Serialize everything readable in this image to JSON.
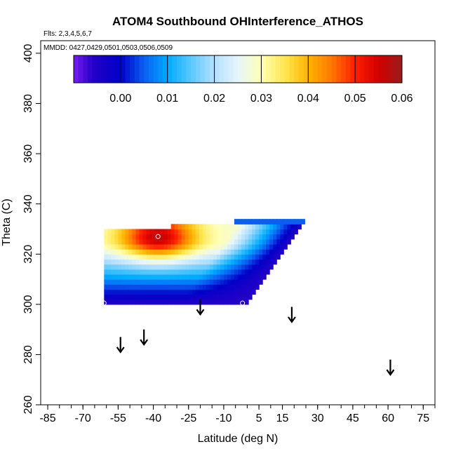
{
  "chart_data": {
    "type": "heatmap",
    "title": "ATOM4 Southbound OHInterference_ATHOS",
    "flights_label": "Flts: 2,3,4,5,6,7",
    "mmdd_label": "MMDD: 0427,0429,0501,0503,0506,0509",
    "xlabel": "Latitude (deg N)",
    "ylabel": "Theta (C)",
    "xlim": [
      -88,
      80
    ],
    "ylim": [
      260,
      405
    ],
    "x_ticks": [
      -85,
      -70,
      -55,
      -40,
      -25,
      -10,
      5,
      15,
      30,
      45,
      60,
      75
    ],
    "x_tick_labels": [
      "-85",
      "-70",
      "-55",
      "-40",
      "-25",
      "-10",
      "5",
      "15",
      "30",
      "45",
      "60",
      "75"
    ],
    "x_minor_step": 5,
    "y_ticks": [
      260,
      280,
      300,
      320,
      340,
      360,
      380,
      400
    ],
    "y_tick_labels": [
      "260",
      "280",
      "300",
      "320",
      "340",
      "360",
      "380",
      "400"
    ],
    "colorbar": {
      "min": -0.01,
      "max": 0.06,
      "ticks": [
        0.0,
        0.01,
        0.02,
        0.03,
        0.04,
        0.05,
        0.06
      ],
      "tick_labels": [
        "0.00",
        "0.01",
        "0.02",
        "0.03",
        "0.04",
        "0.05",
        "0.06"
      ],
      "stops": [
        {
          "v": -0.01,
          "c": "#7a1cf0"
        },
        {
          "v": -0.006,
          "c": "#2400c8"
        },
        {
          "v": 0.0,
          "c": "#0000c8"
        },
        {
          "v": 0.005,
          "c": "#0a5ef2"
        },
        {
          "v": 0.01,
          "c": "#00aaff"
        },
        {
          "v": 0.015,
          "c": "#5ac8ff"
        },
        {
          "v": 0.02,
          "c": "#b4e0ff"
        },
        {
          "v": 0.025,
          "c": "#e6f6fa"
        },
        {
          "v": 0.03,
          "c": "#ffffb4"
        },
        {
          "v": 0.035,
          "c": "#ffe650"
        },
        {
          "v": 0.04,
          "c": "#ffb400"
        },
        {
          "v": 0.045,
          "c": "#ff7800"
        },
        {
          "v": 0.05,
          "c": "#ff1e00"
        },
        {
          "v": 0.055,
          "c": "#d20000"
        },
        {
          "v": 0.06,
          "c": "#9a1c1c"
        }
      ]
    },
    "field": {
      "description_values_in_data_units": true,
      "lat_min": -61,
      "lat_max": 26,
      "theta_min": 300,
      "theta_max": 334,
      "lat_step": 1.5,
      "theta_step": 2,
      "polygon": [
        {
          "lat": -61,
          "theta": 300
        },
        {
          "lat": -61,
          "theta": 330
        },
        {
          "lat": -33,
          "theta": 331
        },
        {
          "lat": -2,
          "theta": 333
        },
        {
          "lat": 26,
          "theta": 334
        },
        {
          "lat": 26,
          "theta": 332
        },
        {
          "lat": -1,
          "theta": 300
        }
      ],
      "max_point": {
        "lat": -38,
        "theta": 327,
        "value": 0.056
      },
      "upper_band": {
        "theta": 333,
        "lat_start": -6,
        "lat_end": 24,
        "value": 0.005
      }
    },
    "markers": [
      {
        "lat": -61,
        "theta": 300.5
      },
      {
        "lat": -38,
        "theta": 327
      },
      {
        "lat": -2,
        "theta": 300.5
      }
    ],
    "arrows": [
      {
        "lat": -54,
        "theta_top": 287,
        "theta_bottom": 281
      },
      {
        "lat": -44,
        "theta_top": 290,
        "theta_bottom": 284
      },
      {
        "lat": -20,
        "theta_top": 302,
        "theta_bottom": 296
      },
      {
        "lat": 19,
        "theta_top": 299,
        "theta_bottom": 293
      },
      {
        "lat": 61,
        "theta_top": 278,
        "theta_bottom": 272
      }
    ]
  }
}
